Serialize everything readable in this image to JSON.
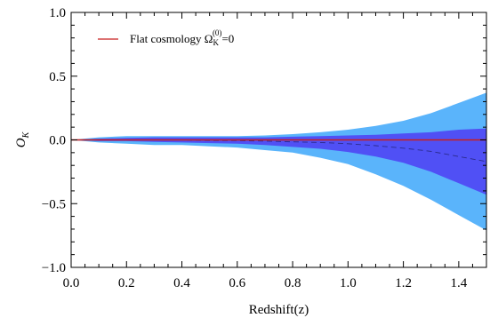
{
  "chart_data": {
    "type": "area",
    "xlabel": "Redshift(z)",
    "ylabel_main": "O",
    "ylabel_sub": "K",
    "xlim": [
      0.0,
      1.5
    ],
    "ylim": [
      -1.0,
      1.0
    ],
    "x_ticks": [
      "0.0",
      "0.2",
      "0.4",
      "0.6",
      "0.8",
      "1.0",
      "1.2",
      "1.4"
    ],
    "x_tick_values": [
      0.0,
      0.2,
      0.4,
      0.6,
      0.8,
      1.0,
      1.2,
      1.4
    ],
    "y_ticks": [
      "−1.0",
      "−0.5",
      "0.0",
      "0.5",
      "1.0"
    ],
    "y_tick_values": [
      -1.0,
      -0.5,
      0.0,
      0.5,
      1.0
    ],
    "grid": false,
    "legend_placement": "top-left",
    "legend": {
      "text": "Flat cosmology Ω",
      "sup": "(0)",
      "sub": "K",
      "suffix": "=0"
    },
    "series": [
      {
        "kind": "band",
        "level": "outer",
        "color": "#5ab4fb",
        "x": [
          0.0,
          0.1,
          0.2,
          0.3,
          0.4,
          0.5,
          0.6,
          0.7,
          0.8,
          0.9,
          1.0,
          1.1,
          1.2,
          1.3,
          1.4,
          1.5
        ],
        "upper": [
          0.0,
          0.02,
          0.03,
          0.03,
          0.03,
          0.03,
          0.03,
          0.035,
          0.045,
          0.06,
          0.08,
          0.11,
          0.15,
          0.21,
          0.29,
          0.37
        ],
        "lower": [
          0.0,
          -0.02,
          -0.03,
          -0.04,
          -0.04,
          -0.05,
          -0.06,
          -0.08,
          -0.1,
          -0.14,
          -0.19,
          -0.27,
          -0.36,
          -0.47,
          -0.59,
          -0.71
        ]
      },
      {
        "kind": "band",
        "level": "inner",
        "color": "#5050f5",
        "x": [
          0.0,
          0.1,
          0.2,
          0.3,
          0.4,
          0.5,
          0.6,
          0.7,
          0.8,
          0.9,
          1.0,
          1.1,
          1.2,
          1.3,
          1.4,
          1.5
        ],
        "upper": [
          0.0,
          0.01,
          0.015,
          0.02,
          0.02,
          0.02,
          0.02,
          0.02,
          0.025,
          0.03,
          0.035,
          0.04,
          0.05,
          0.06,
          0.08,
          0.09
        ],
        "lower": [
          0.0,
          -0.01,
          -0.01,
          -0.015,
          -0.02,
          -0.025,
          -0.03,
          -0.04,
          -0.055,
          -0.07,
          -0.095,
          -0.13,
          -0.18,
          -0.25,
          -0.34,
          -0.43
        ]
      },
      {
        "kind": "line",
        "style": "dashed",
        "color": "#2a2a8c",
        "x": [
          0.0,
          0.1,
          0.2,
          0.3,
          0.4,
          0.5,
          0.6,
          0.7,
          0.8,
          0.9,
          1.0,
          1.1,
          1.2,
          1.3,
          1.4,
          1.5
        ],
        "y": [
          0.0,
          0.0,
          0.0,
          0.0,
          0.0,
          -0.005,
          -0.005,
          -0.01,
          -0.015,
          -0.02,
          -0.03,
          -0.045,
          -0.065,
          -0.09,
          -0.13,
          -0.17
        ]
      },
      {
        "kind": "line",
        "style": "solid",
        "color": "#c81e1e",
        "x": [
          0.0,
          1.5
        ],
        "y": [
          0.0,
          0.0
        ]
      }
    ]
  }
}
